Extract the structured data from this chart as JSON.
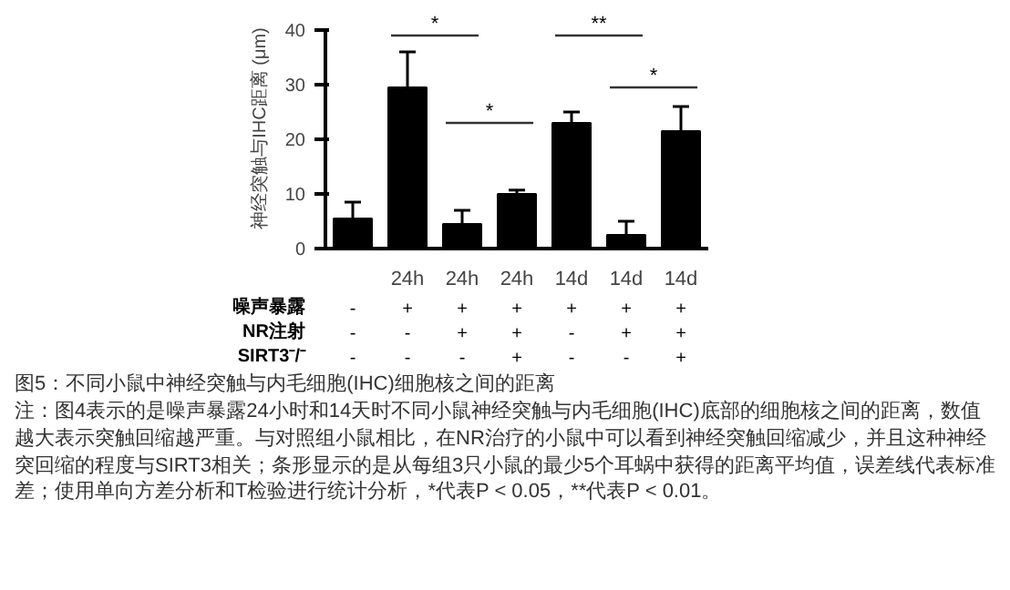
{
  "chart_data": {
    "type": "bar",
    "title": "图5：不同小鼠中神经突触与内毛细胞(IHC)细胞核之间的距离",
    "ylabel": "神经突触与IHC距离 (μm)",
    "categories": [
      null,
      "24h",
      "24h",
      "24h",
      "14d",
      "14d",
      "14d"
    ],
    "values": [
      5.5,
      29.5,
      4.5,
      10,
      23,
      2.5,
      21.5
    ],
    "errors": [
      [
        5.5,
        8.5
      ],
      [
        29.5,
        36
      ],
      [
        4.5,
        7
      ],
      [
        10,
        10.7
      ],
      [
        23,
        25
      ],
      [
        2.5,
        5
      ],
      [
        21.5,
        26
      ]
    ],
    "color": "#000000",
    "ylim": [
      0,
      40
    ],
    "yticks": [
      0,
      10,
      20,
      30,
      40
    ],
    "grid": false,
    "annotations": [
      "*",
      "*",
      "**",
      "*",
      "噪声暴露",
      "NR注射",
      "SIRT3⁻/⁻",
      "-",
      "+",
      "+",
      "+",
      "+",
      "+",
      "+",
      "-",
      "-",
      "+",
      "+",
      "-",
      "+",
      "+",
      "-",
      "-",
      "-",
      "+",
      "-",
      "-",
      "+",
      "注：图4表示的是噪声暴露24小时和14天时不同小鼠神经突触与内毛细胞(IHC)底部的细胞核之间的距离，数值越大表示突触回缩越严重。与对照组小鼠相比，在NR治疗的小鼠中可以看到神经突触回缩减少，并且这种神经突回缩的程度与SIRT3相关；条形显示的是从每组3只小鼠的最少5个耳蜗中获得的距离平均值，误差线代表标准差；使用单向方差分析和T检验进行统计分析，*代表P < 0.05，**代表P < 0.01。"
    ]
  }
}
